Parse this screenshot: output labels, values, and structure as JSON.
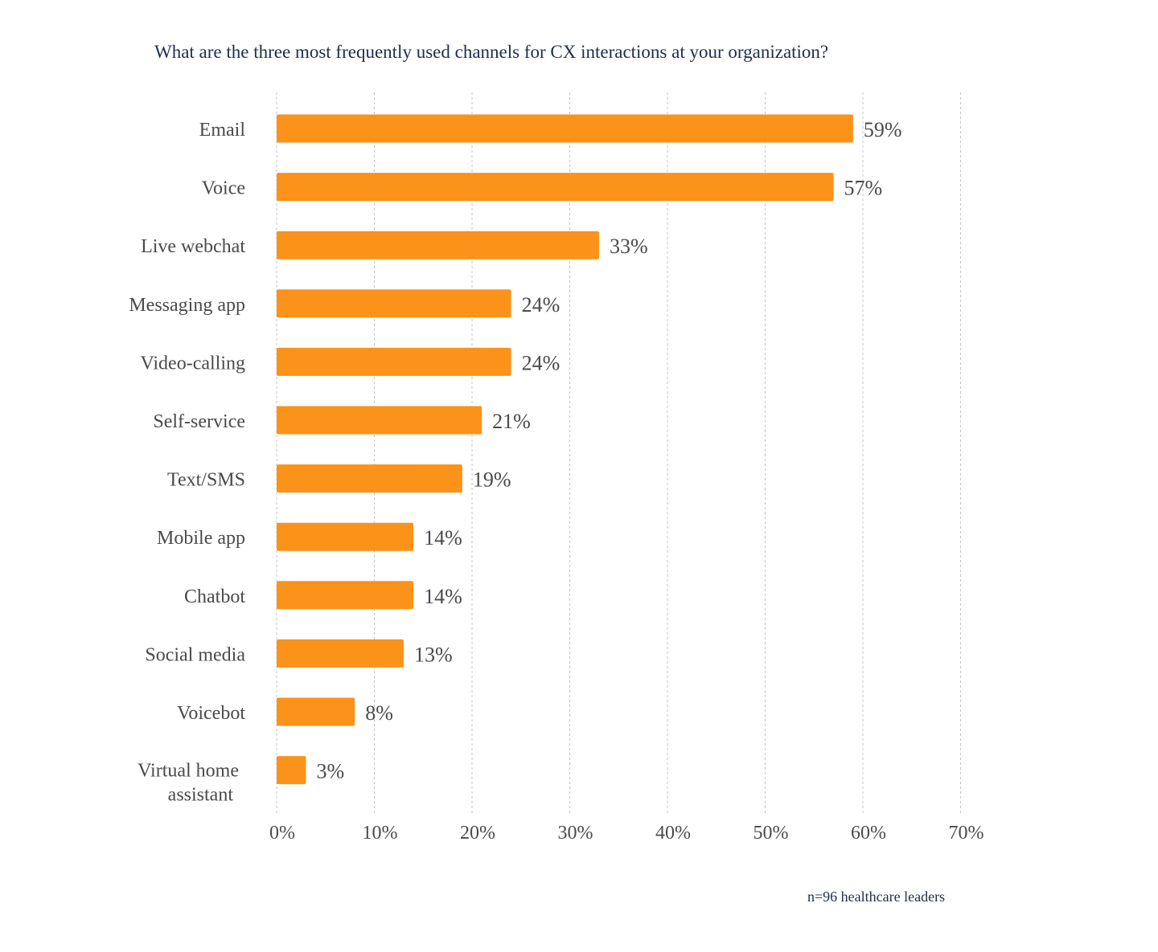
{
  "chart_data": {
    "type": "bar",
    "orientation": "horizontal",
    "title": "What are the three most frequently used channels for CX interactions at your organization?",
    "note": "n=96 healthcare leaders",
    "categories": [
      "Email",
      "Voice",
      "Live webchat",
      "Messaging app",
      "Video-calling",
      "Self-service",
      "Text/SMS",
      "Mobile app",
      "Chatbot",
      "Social media",
      "Voicebot",
      "Virtual home assistant"
    ],
    "values": [
      59,
      57,
      33,
      24,
      24,
      21,
      19,
      14,
      14,
      13,
      8,
      3
    ],
    "value_labels": [
      "59%",
      "57%",
      "33%",
      "24%",
      "24%",
      "21%",
      "19%",
      "14%",
      "14%",
      "13%",
      "8%",
      "3%"
    ],
    "xticks": [
      "0%",
      "10%",
      "20%",
      "30%",
      "40%",
      "50%",
      "60%",
      "70%"
    ],
    "xlim": [
      0,
      70
    ],
    "grid": "vertical dashed",
    "bar_color": "#fb9219",
    "xlabel": "",
    "ylabel": ""
  }
}
